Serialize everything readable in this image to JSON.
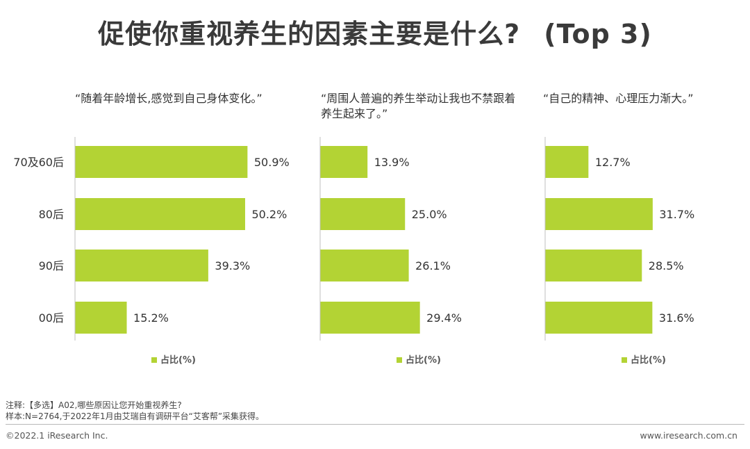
{
  "title": {
    "main": "促使你重视养生的因素主要是什么?",
    "suffix": "(Top 3)"
  },
  "chart_data": [
    {
      "type": "bar",
      "orientation": "horizontal",
      "title": "“随着年龄增长,感觉到自己身体变化。”",
      "categories": [
        "70及60后",
        "80后",
        "90后",
        "00后"
      ],
      "series": [
        {
          "name": "占比(%)",
          "values": [
            50.9,
            50.2,
            39.3,
            15.2
          ]
        }
      ],
      "color": "#b3d334",
      "xlim": [
        0,
        60
      ],
      "legend": "bottom",
      "grid": false
    },
    {
      "type": "bar",
      "orientation": "horizontal",
      "title": "“周围人普遍的养生举动让我也不禁跟着养生起来了。”",
      "categories": [
        "70及60后",
        "80后",
        "90后",
        "00后"
      ],
      "series": [
        {
          "name": "占比(%)",
          "values": [
            13.9,
            25.0,
            26.1,
            29.4
          ]
        }
      ],
      "color": "#b3d334",
      "xlim": [
        0,
        60
      ],
      "legend": "bottom",
      "grid": false
    },
    {
      "type": "bar",
      "orientation": "horizontal",
      "title": "“自己的精神、心理压力渐大。”",
      "categories": [
        "70及60后",
        "80后",
        "90后",
        "00后"
      ],
      "series": [
        {
          "name": "占比(%)",
          "values": [
            12.7,
            31.7,
            28.5,
            31.6
          ]
        }
      ],
      "color": "#b3d334",
      "xlim": [
        0,
        60
      ],
      "legend": "bottom",
      "grid": false
    }
  ],
  "footnotes": {
    "note": "注释:【多选】A02,哪些原因让您开始重视养生?",
    "sample": "样本:N=2764,于2022年1月由艾瑞自有调研平台“艾客帮”采集获得。"
  },
  "footer": {
    "copyright": "©2022.1 iResearch Inc.",
    "website": "www.iresearch.com.cn"
  }
}
